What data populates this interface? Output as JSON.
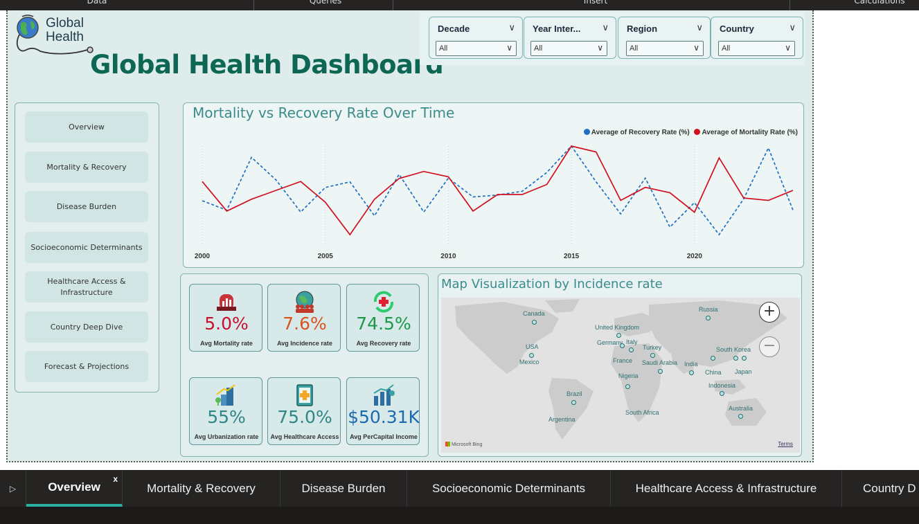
{
  "top_tabs": [
    "Data",
    "Queries",
    "Insert",
    "Calculations"
  ],
  "logo": {
    "line1": "Global",
    "line2": "Health"
  },
  "page_title": "Global Health Dashboard",
  "slicers": [
    {
      "label": "Decade",
      "value": "All"
    },
    {
      "label": "Year Inter...",
      "value": "All"
    },
    {
      "label": "Region",
      "value": "All"
    },
    {
      "label": "Country",
      "value": "All"
    }
  ],
  "nav": {
    "items": [
      {
        "label": "Overview"
      },
      {
        "label": "Mortality & Recovery"
      },
      {
        "label": "Disease Burden"
      },
      {
        "label": "Socioeconomic Determinants"
      },
      {
        "label": "Healthcare Access & Infrastructure"
      },
      {
        "label": "Country Deep Dive"
      },
      {
        "label": "Forecast & Projections"
      }
    ]
  },
  "chart": {
    "title": "Mortality vs Recovery Rate Over Time",
    "legend": {
      "recovery": "Average of Recovery Rate (%)",
      "mortality": "Average of Mortality Rate (%)"
    }
  },
  "chart_data": {
    "type": "line",
    "title": "Mortality vs Recovery Rate Over Time",
    "x": [
      2000,
      2001,
      2002,
      2003,
      2004,
      2005,
      2006,
      2007,
      2008,
      2009,
      2010,
      2011,
      2012,
      2013,
      2014,
      2015,
      2016,
      2017,
      2018,
      2019,
      2020,
      2021,
      2022,
      2023,
      2024
    ],
    "x_ticks": [
      2000,
      2005,
      2010,
      2015,
      2020
    ],
    "series": [
      {
        "name": "Average of Recovery Rate (%)",
        "color": "#1f6fc0",
        "style": "dashed",
        "values": [
          74.2,
          73.7,
          76.5,
          75.3,
          73.6,
          74.9,
          75.2,
          73.4,
          75.6,
          73.6,
          75.4,
          74.4,
          74.5,
          74.7,
          75.7,
          77.1,
          75.2,
          73.5,
          75.4,
          72.8,
          74.1,
          72.4,
          74.3,
          77.0,
          73.7
        ],
        "color_name": "blue"
      },
      {
        "name": "Average of Mortality Rate (%)",
        "color": "#d0101e",
        "style": "solid",
        "values": [
          5.2,
          4.7,
          4.9,
          5.05,
          5.2,
          4.85,
          4.3,
          4.9,
          5.25,
          5.37,
          5.28,
          4.7,
          4.98,
          4.98,
          5.15,
          5.8,
          5.7,
          4.88,
          5.1,
          5.01,
          4.68,
          5.6,
          4.92,
          4.88,
          5.05
        ],
        "color_name": "red"
      }
    ],
    "ylabel": "",
    "xlabel": "",
    "grid": false,
    "legend_position": "top-right"
  },
  "kpis": [
    {
      "value": "5.0%",
      "caption": "Avg Mortality rate",
      "color": "#c8102e",
      "icon": "hospital-chart-icon"
    },
    {
      "value": "7.6%",
      "caption": "Avg Incidence rate",
      "color": "#d9531e",
      "icon": "globe-people-icon"
    },
    {
      "value": "74.5%",
      "caption": "Avg Recovery rate",
      "color": "#1a9a4a",
      "icon": "recovery-cross-icon"
    },
    {
      "value": "55%",
      "caption": "Avg Urbanization rate",
      "color": "#2e8686",
      "icon": "city-growth-icon"
    },
    {
      "value": "75.0%",
      "caption": "Avg Healthcare Access",
      "color": "#2e8686",
      "icon": "medical-card-icon"
    },
    {
      "value": "$50.31K",
      "caption": "Avg PerCapital Income",
      "color": "#1a6ab0",
      "icon": "income-chart-icon"
    }
  ],
  "map": {
    "title": "Map Visualization by Incidence rate",
    "attribution": "Microsoft Bing",
    "terms": "Terms",
    "zoom_in": "+",
    "zoom_out": "−",
    "countries": [
      "Canada",
      "Russia",
      "United Kingdom",
      "Germany",
      "Italy",
      "Turkey",
      "USA",
      "France",
      "Saudi Arabia",
      "India",
      "South Korea",
      "Japan",
      "Mexico",
      "China",
      "Nigeria",
      "Indonesia",
      "Brazil",
      "Australia",
      "South Africa",
      "Argentina"
    ]
  },
  "page_tabs": [
    {
      "label": "Overview",
      "active": true,
      "close": "x"
    },
    {
      "label": "Mortality & Recovery"
    },
    {
      "label": "Disease Burden"
    },
    {
      "label": "Socioeconomic Determinants"
    },
    {
      "label": "Healthcare Access & Infrastructure"
    },
    {
      "label": "Country D"
    }
  ]
}
